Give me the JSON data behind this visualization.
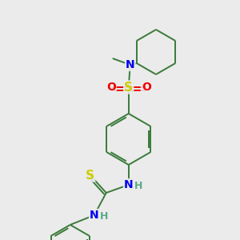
{
  "background_color": "#ebebeb",
  "bond_color": "#3a7a3a",
  "bond_width": 1.4,
  "atom_colors": {
    "N": "#0000ee",
    "S_sulfonamide": "#cccc00",
    "O": "#ee0000",
    "S_thio": "#cccc00",
    "H": "#5aaa8a"
  },
  "figsize": [
    3.0,
    3.0
  ],
  "dpi": 100,
  "xlim": [
    0,
    300
  ],
  "ylim": [
    0,
    300
  ]
}
